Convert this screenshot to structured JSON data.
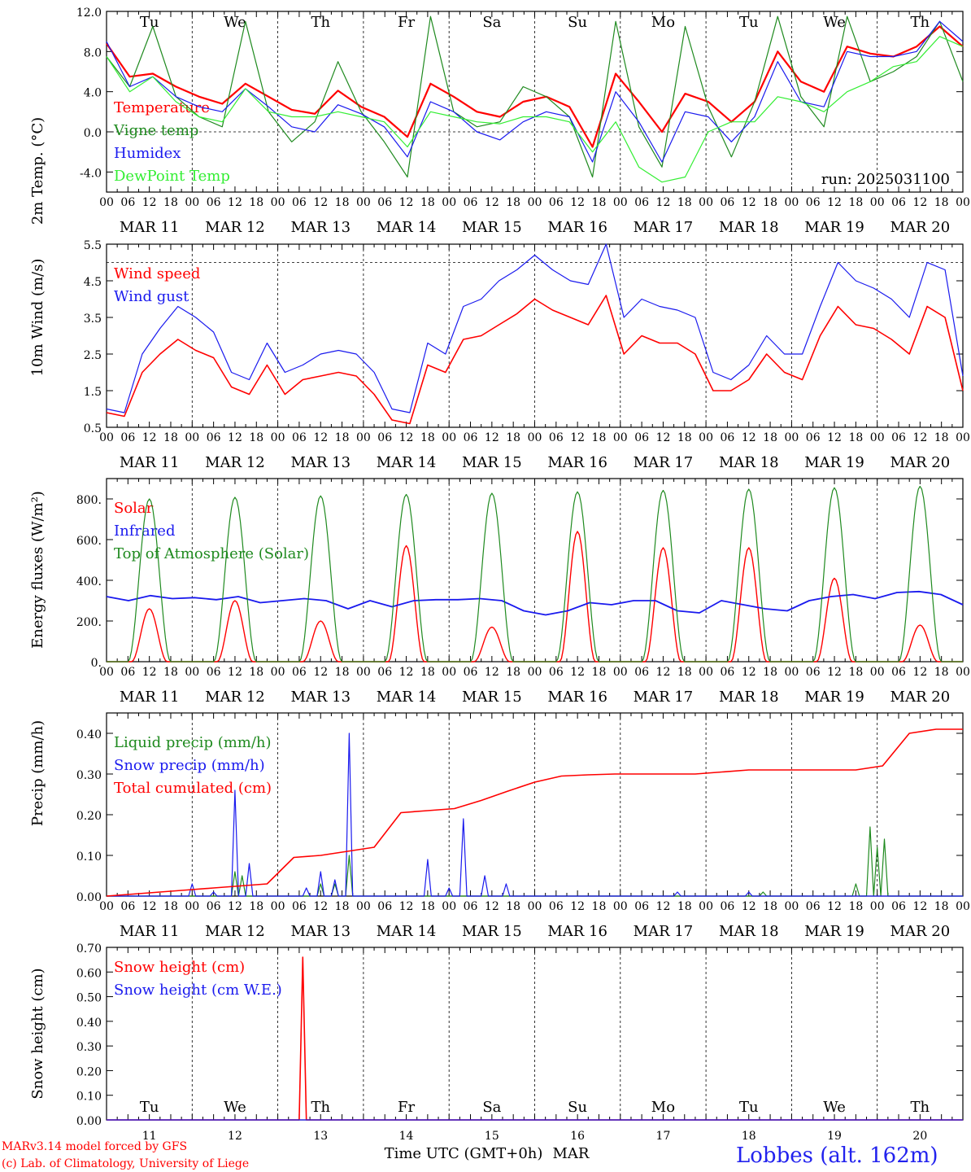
{
  "chart_data": [
    {
      "type": "line",
      "ylabel": "2m Temp. (°C)",
      "ylim": [
        -6,
        12
      ],
      "yticks": [
        12,
        8,
        4,
        0,
        -4
      ],
      "ytick_labels": [
        "12.0",
        "8.0",
        "4.0",
        "0.0",
        "-4.0"
      ],
      "hline": 0,
      "annotation": "run: 2025031100",
      "x_hours": [
        0,
        6,
        12,
        18,
        24,
        30,
        36,
        42,
        48,
        54,
        60,
        66,
        72,
        78,
        84,
        90,
        96,
        102,
        108,
        114,
        120,
        126,
        132,
        138,
        144,
        150,
        156,
        162,
        168,
        174,
        180,
        186,
        192,
        198,
        204,
        210,
        216,
        222,
        228,
        234,
        240
      ],
      "series": [
        {
          "name": "Temperature",
          "color": "#ff0000",
          "width": 2.2,
          "values": [
            8.8,
            5.5,
            5.8,
            4.5,
            3.5,
            2.8,
            4.8,
            3.5,
            2.2,
            1.8,
            4.1,
            2.5,
            1.5,
            -0.5,
            4.8,
            3.5,
            2.0,
            1.5,
            3.0,
            3.5,
            2.5,
            -1.5,
            5.8,
            3.0,
            0.0,
            3.8,
            3.0,
            1.0,
            3.0,
            8.0,
            5.0,
            4.0,
            8.5,
            7.8,
            7.5,
            8.5,
            10.5,
            8.5
          ]
        },
        {
          "name": "Vigne temp",
          "color": "#1f8a1f",
          "width": 1.2,
          "values": [
            7.5,
            4.5,
            10.5,
            3.5,
            1.5,
            0.5,
            11.0,
            2.0,
            -1.0,
            1.0,
            7.0,
            2.0,
            -1.0,
            -4.5,
            11.5,
            2.0,
            0.5,
            1.0,
            4.5,
            3.5,
            1.5,
            -4.5,
            11.0,
            0.5,
            -3.5,
            10.5,
            2.5,
            -2.5,
            3.0,
            11.5,
            3.5,
            0.5,
            11.5,
            5.0,
            6.0,
            7.5,
            11.0,
            5.0
          ]
        },
        {
          "name": "Humidex",
          "color": "#1a1aee",
          "width": 1.2,
          "values": [
            9.0,
            4.5,
            5.5,
            3.5,
            2.5,
            2.0,
            4.3,
            2.5,
            0.5,
            0.0,
            2.7,
            1.8,
            0.5,
            -2.5,
            3.0,
            2.0,
            0.0,
            -0.8,
            1.0,
            2.0,
            1.5,
            -3.0,
            4.0,
            1.0,
            -3.0,
            2.0,
            1.5,
            -1.0,
            1.5,
            7.0,
            3.0,
            2.5,
            8.0,
            7.5,
            7.5,
            8.0,
            11.0,
            9.0
          ]
        },
        {
          "name": "DewPoint Temp",
          "color": "#33ee33",
          "width": 1.2,
          "values": [
            7.5,
            4.0,
            5.5,
            3.0,
            1.5,
            1.0,
            4.3,
            2.0,
            1.5,
            1.5,
            2.0,
            1.5,
            1.0,
            -1.5,
            2.0,
            1.5,
            1.0,
            0.8,
            1.5,
            1.5,
            1.0,
            -2.0,
            1.0,
            -3.5,
            -5.0,
            -4.5,
            0.0,
            1.0,
            1.0,
            3.5,
            3.0,
            2.0,
            4.0,
            5.0,
            6.5,
            7.0,
            9.5,
            8.5
          ]
        }
      ]
    },
    {
      "type": "line",
      "ylabel": "10m Wind (m/s)",
      "ylim": [
        0.5,
        5.5
      ],
      "yticks": [
        5.5,
        4.5,
        3.5,
        2.5,
        1.5,
        0.5
      ],
      "ytick_labels": [
        "5.5",
        "4.5",
        "3.5",
        "2.5",
        "1.5",
        "0.5"
      ],
      "hline": 5.0,
      "series": [
        {
          "name": "Wind speed",
          "color": "#ff0000",
          "width": 1.6,
          "values": [
            0.9,
            0.8,
            2.0,
            2.5,
            2.9,
            2.6,
            2.4,
            1.6,
            1.4,
            2.2,
            1.4,
            1.8,
            1.9,
            2.0,
            1.9,
            1.4,
            0.7,
            0.6,
            2.2,
            2.0,
            2.9,
            3.0,
            3.3,
            3.6,
            4.0,
            3.7,
            3.5,
            3.3,
            4.1,
            2.5,
            3.0,
            2.8,
            2.8,
            2.5,
            1.5,
            1.5,
            1.8,
            2.5,
            2.0,
            1.8,
            3.0,
            3.8,
            3.3,
            3.2,
            2.9,
            2.5,
            3.8,
            3.5,
            1.5
          ]
        },
        {
          "name": "Wind gust",
          "color": "#1a1aee",
          "width": 1.2,
          "values": [
            1.0,
            0.9,
            2.5,
            3.2,
            3.8,
            3.5,
            3.1,
            2.0,
            1.8,
            2.8,
            2.0,
            2.2,
            2.5,
            2.6,
            2.5,
            2.0,
            1.0,
            0.9,
            2.8,
            2.5,
            3.8,
            4.0,
            4.5,
            4.8,
            5.2,
            4.8,
            4.5,
            4.4,
            5.5,
            3.5,
            4.0,
            3.8,
            3.7,
            3.5,
            2.0,
            1.8,
            2.2,
            3.0,
            2.5,
            2.5,
            3.8,
            5.0,
            4.5,
            4.3,
            4.0,
            3.5,
            5.0,
            4.8,
            1.9
          ]
        }
      ]
    },
    {
      "type": "line",
      "ylabel": "Energy fluxes (W/m²)",
      "ylim": [
        0,
        900
      ],
      "yticks": [
        800,
        600,
        400,
        200,
        0
      ],
      "ytick_labels": [
        "800.",
        "600.",
        "400.",
        "200.",
        "0."
      ],
      "series": [
        {
          "name": "Solar",
          "color": "#ff0000",
          "width": 1.4,
          "day_peaks": [
            260,
            300,
            200,
            570,
            170,
            640,
            560,
            560,
            410,
            180
          ]
        },
        {
          "name": "Infrared",
          "color": "#1a1aee",
          "width": 1.8,
          "values": [
            320,
            300,
            325,
            310,
            315,
            305,
            320,
            290,
            300,
            310,
            300,
            260,
            300,
            270,
            300,
            305,
            305,
            310,
            300,
            250,
            230,
            250,
            290,
            280,
            300,
            300,
            250,
            240,
            300,
            280,
            260,
            250,
            300,
            320,
            330,
            310,
            340,
            345,
            330,
            280
          ]
        },
        {
          "name": "Top of Atmosphere (Solar)",
          "color": "#1f8a1f",
          "width": 1.2,
          "day_peaks": [
            800,
            808,
            815,
            822,
            828,
            835,
            842,
            848,
            855,
            862
          ]
        }
      ]
    },
    {
      "type": "line",
      "ylabel": "Precip (mm/h)",
      "ylim": [
        0,
        0.45
      ],
      "yticks": [
        0.4,
        0.3,
        0.2,
        0.1,
        0.0
      ],
      "ytick_labels": [
        "0.40",
        "0.30",
        "0.20",
        "0.10",
        "0.00"
      ],
      "series": [
        {
          "name": "Liquid precip (mm/h)",
          "color": "#1f8a1f",
          "width": 1.2,
          "spikes": [
            [
              36,
              0.06
            ],
            [
              38,
              0.05
            ],
            [
              60,
              0.03
            ],
            [
              64,
              0.03
            ],
            [
              68,
              0.1
            ],
            [
              184,
              0.01
            ],
            [
              210,
              0.03
            ],
            [
              214,
              0.17
            ],
            [
              216,
              0.12
            ],
            [
              218,
              0.14
            ],
            [
              222,
              0.0
            ]
          ]
        },
        {
          "name": "Snow precip (mm/h)",
          "color": "#1a1aee",
          "width": 1.2,
          "spikes": [
            [
              24,
              0.03
            ],
            [
              30,
              0.01
            ],
            [
              36,
              0.26
            ],
            [
              40,
              0.08
            ],
            [
              56,
              0.02
            ],
            [
              60,
              0.06
            ],
            [
              64,
              0.04
            ],
            [
              68,
              0.4
            ],
            [
              90,
              0.09
            ],
            [
              96,
              0.02
            ],
            [
              100,
              0.19
            ],
            [
              106,
              0.05
            ],
            [
              112,
              0.03
            ],
            [
              160,
              0.01
            ],
            [
              180,
              0.01
            ]
          ]
        },
        {
          "name": "Total cumulated (cm)",
          "color": "#ff0000",
          "width": 1.6,
          "values": [
            0.0,
            0.005,
            0.01,
            0.015,
            0.02,
            0.025,
            0.03,
            0.095,
            0.1,
            0.11,
            0.12,
            0.205,
            0.21,
            0.215,
            0.235,
            0.258,
            0.28,
            0.295,
            0.298,
            0.3,
            0.3,
            0.3,
            0.3,
            0.305,
            0.31,
            0.31,
            0.31,
            0.31,
            0.31,
            0.32,
            0.4,
            0.41,
            0.41
          ]
        }
      ]
    },
    {
      "type": "line",
      "ylabel": "Snow height (cm)",
      "ylim": [
        0,
        0.7
      ],
      "yticks": [
        0.7,
        0.6,
        0.5,
        0.4,
        0.3,
        0.2,
        0.1,
        0.0
      ],
      "ytick_labels": [
        "0.70",
        "0.60",
        "0.50",
        "0.40",
        "0.30",
        "0.20",
        "0.10",
        "0.00"
      ],
      "series": [
        {
          "name": "Snow height (cm)",
          "color": "#ff0000",
          "width": 1.6,
          "spikes": [
            [
              55,
              0.66
            ]
          ]
        },
        {
          "name": "Snow height (cm W.E.)",
          "color": "#1a1aee",
          "width": 1.2,
          "values": [
            0,
            0
          ]
        }
      ],
      "x_title": "Time UTC (GMT+0h)",
      "x_title_month": "MAR"
    }
  ],
  "hour_tick_labels": [
    "00",
    "06",
    "12",
    "18"
  ],
  "final_tick_label": "00",
  "days": [
    {
      "date": "MAR 11",
      "num": "11",
      "dow": "Tu",
      "dow_color": "#000000"
    },
    {
      "date": "MAR 12",
      "num": "12",
      "dow": "We",
      "dow_color": "#000000"
    },
    {
      "date": "MAR 13",
      "num": "13",
      "dow": "Th",
      "dow_color": "#000000"
    },
    {
      "date": "MAR 14",
      "num": "14",
      "dow": "Fr",
      "dow_color": "#000000"
    },
    {
      "date": "MAR 15",
      "num": "15",
      "dow": "Sa",
      "dow_color": "#ff0000"
    },
    {
      "date": "MAR 16",
      "num": "16",
      "dow": "Su",
      "dow_color": "#ff0000"
    },
    {
      "date": "MAR 17",
      "num": "17",
      "dow": "Mo",
      "dow_color": "#000000"
    },
    {
      "date": "MAR 18",
      "num": "18",
      "dow": "Tu",
      "dow_color": "#000000"
    },
    {
      "date": "MAR 19",
      "num": "19",
      "dow": "We",
      "dow_color": "#000000"
    },
    {
      "date": "MAR 20",
      "num": "20",
      "dow": "Th",
      "dow_color": "#000000"
    }
  ],
  "footer": {
    "model": "MARv3.14 model forced by GFS",
    "credit": "(c) Lab. of Climatology, University of Liege",
    "site": "Lobbes (alt. 162m)"
  }
}
